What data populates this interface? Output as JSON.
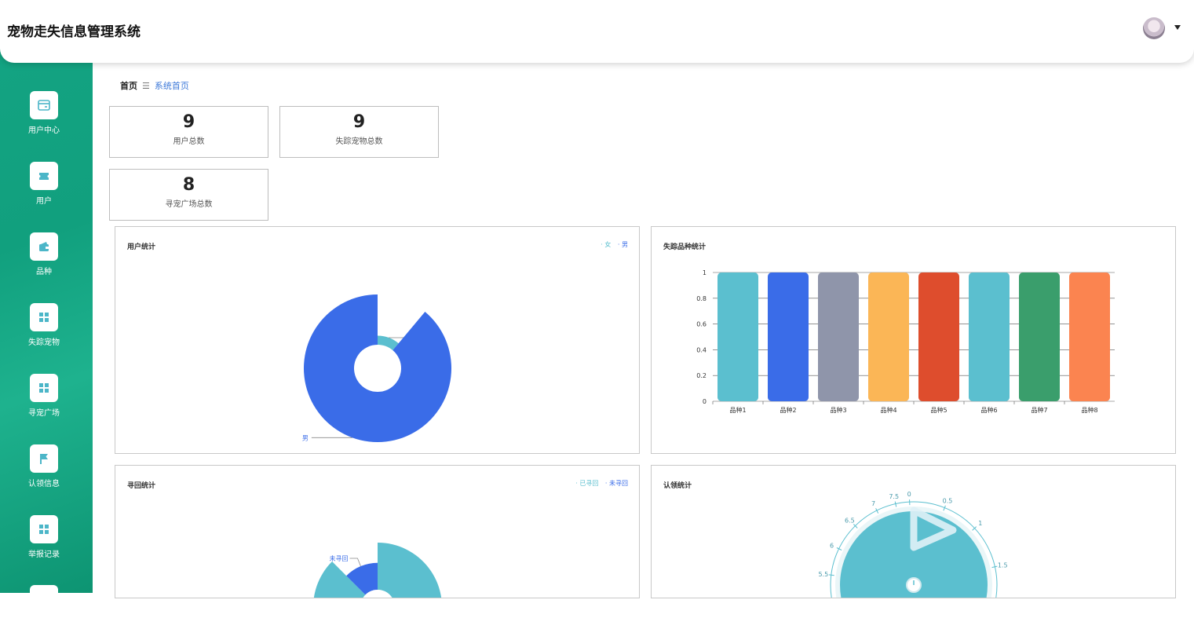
{
  "app": {
    "title": "宠物走失信息管理系统"
  },
  "sidebar": {
    "items": [
      {
        "label": "用户中心",
        "icon": "card-icon"
      },
      {
        "label": "用户",
        "icon": "ticket-icon"
      },
      {
        "label": "品种",
        "icon": "wallet-icon"
      },
      {
        "label": "失踪宠物",
        "icon": "grid-icon"
      },
      {
        "label": "寻宠广场",
        "icon": "grid-icon"
      },
      {
        "label": "认领信息",
        "icon": "flag-icon"
      },
      {
        "label": "举报记录",
        "icon": "grid-icon"
      }
    ]
  },
  "breadcrumb": {
    "home": "首页",
    "current": "系统首页"
  },
  "stats": [
    {
      "value": "9",
      "label": "用户总数"
    },
    {
      "value": "9",
      "label": "失踪宠物总数"
    },
    {
      "value": "8",
      "label": "寻宠广场总数"
    }
  ],
  "panels": {
    "user": {
      "title": "用户统计",
      "legend": [
        "女",
        "男"
      ]
    },
    "breed": {
      "title": "失踪品种统计"
    },
    "recover": {
      "title": "寻回统计",
      "legend": [
        "已寻回",
        "未寻回"
      ]
    },
    "claim": {
      "title": "认领统计"
    }
  },
  "colors": {
    "sidebar": "#14a483",
    "teal": "#5bbfcf",
    "blue": "#3a6ce8",
    "link": "#3c78d8"
  },
  "chart_data": [
    {
      "type": "pie",
      "title": "用户统计",
      "categories": [
        "女",
        "男"
      ],
      "values": [
        1,
        8
      ],
      "legend": "top-right"
    },
    {
      "type": "bar",
      "title": "失踪品种统计",
      "categories": [
        "品种1",
        "品种2",
        "品种3",
        "品种4",
        "品种5",
        "品种6",
        "品种7",
        "品种8"
      ],
      "values": [
        1,
        1,
        1,
        1,
        1,
        1,
        1,
        1
      ],
      "yticks": [
        "0",
        "0.2",
        "0.4",
        "0.6",
        "0.8",
        "1"
      ],
      "ylim": [
        0,
        1
      ],
      "grid": true,
      "colors": [
        "#5bbfcf",
        "#3a6ce8",
        "#8f95aa",
        "#fbb656",
        "#de4d2d",
        "#5bbfcf",
        "#3a9e6c",
        "#fb8450"
      ]
    },
    {
      "type": "pie",
      "title": "寻回统计",
      "categories": [
        "已寻回",
        "未寻回"
      ],
      "values": [
        7,
        1
      ],
      "legend": "top-right"
    },
    {
      "type": "gauge",
      "title": "认领统计",
      "ticks": [
        "0",
        "0.5",
        "1",
        "1.5",
        "5.5",
        "6",
        "6.5",
        "7",
        "7.5"
      ],
      "value": 0
    }
  ]
}
